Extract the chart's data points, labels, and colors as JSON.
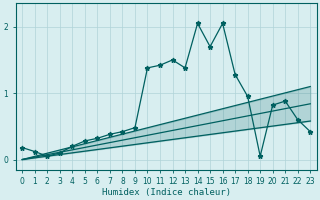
{
  "xlabel": "Humidex (Indice chaleur)",
  "x": [
    0,
    1,
    2,
    3,
    4,
    5,
    6,
    7,
    8,
    9,
    10,
    11,
    12,
    13,
    14,
    15,
    16,
    17,
    18,
    19,
    20,
    21,
    22,
    23
  ],
  "y_main": [
    0.18,
    0.12,
    0.05,
    0.1,
    0.2,
    0.28,
    0.32,
    0.38,
    0.42,
    0.48,
    1.38,
    1.42,
    1.5,
    1.38,
    2.05,
    1.7,
    2.05,
    1.28,
    0.95,
    0.05,
    0.82,
    0.88,
    0.6,
    0.42
  ],
  "line1_slope": 0.0478,
  "line2_slope": 0.0365,
  "line3_slope": 0.0252,
  "bg_color": "#d8eef0",
  "line_color": "#006060",
  "grid_color": "#b0d4d8",
  "ylim": [
    -0.15,
    2.35
  ],
  "xlim": [
    -0.5,
    23.5
  ],
  "yticks": [
    0,
    1,
    2
  ],
  "xticks": [
    0,
    1,
    2,
    3,
    4,
    5,
    6,
    7,
    8,
    9,
    10,
    11,
    12,
    13,
    14,
    15,
    16,
    17,
    18,
    19,
    20,
    21,
    22,
    23
  ]
}
